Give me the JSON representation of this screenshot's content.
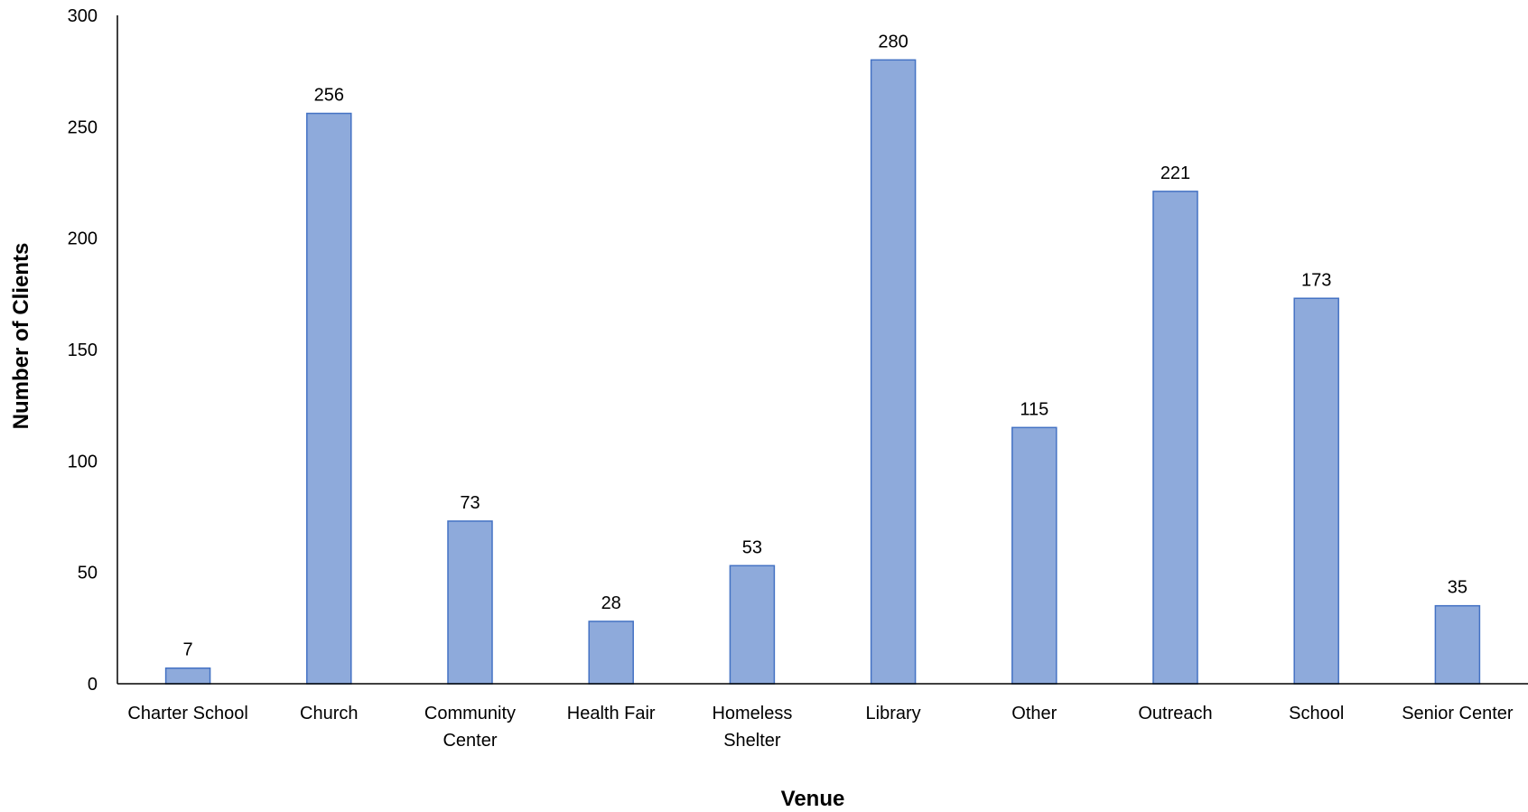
{
  "chart_data": {
    "type": "bar",
    "title": "",
    "xlabel": "Venue",
    "ylabel": "Number of Clients",
    "ylim": [
      0,
      300
    ],
    "yticks": [
      "0",
      "50",
      "100",
      "150",
      "200",
      "250",
      "300"
    ],
    "grid": false,
    "legend": "none",
    "categories": [
      [
        "Charter School"
      ],
      [
        "Church"
      ],
      [
        "Community",
        "Center"
      ],
      [
        "Health Fair"
      ],
      [
        "Homeless",
        "Shelter"
      ],
      [
        "Library"
      ],
      [
        "Other"
      ],
      [
        "Outreach"
      ],
      [
        "School"
      ],
      [
        "Senior Center"
      ]
    ],
    "values": [
      7,
      256,
      73,
      28,
      53,
      280,
      115,
      221,
      173,
      35
    ],
    "data_labels": [
      "7",
      "256",
      "73",
      "28",
      "53",
      "280",
      "115",
      "221",
      "173",
      "35"
    ],
    "colors": {
      "bar_fill": "#8eaadb",
      "bar_stroke": "#4472c4",
      "axis": "#000000"
    }
  }
}
